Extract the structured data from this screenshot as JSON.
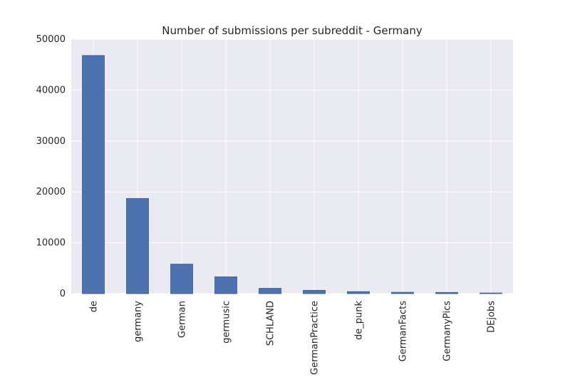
{
  "chart_data": {
    "type": "bar",
    "title": "Number of submissions per subreddit - Germany",
    "xlabel": "",
    "ylabel": "",
    "categories": [
      "de",
      "germany",
      "German",
      "germusic",
      "SCHLAND",
      "GermanPractice",
      "de_punk",
      "GermanFacts",
      "GermanyPics",
      "DEjobs"
    ],
    "values": [
      46800,
      18700,
      5800,
      3300,
      1050,
      650,
      400,
      270,
      240,
      130
    ],
    "ylim": [
      0,
      50000
    ],
    "yticks": [
      0,
      10000,
      20000,
      30000,
      40000,
      50000
    ],
    "ytick_labels": [
      "0",
      "10000",
      "20000",
      "30000",
      "40000",
      "50000"
    ],
    "grid": true,
    "legend": "none",
    "colors": {
      "bar": "#4c72b0",
      "bar_edge": "#3b5a8a",
      "plot_bg": "#eaeaf2",
      "grid": "#ffffff"
    }
  }
}
